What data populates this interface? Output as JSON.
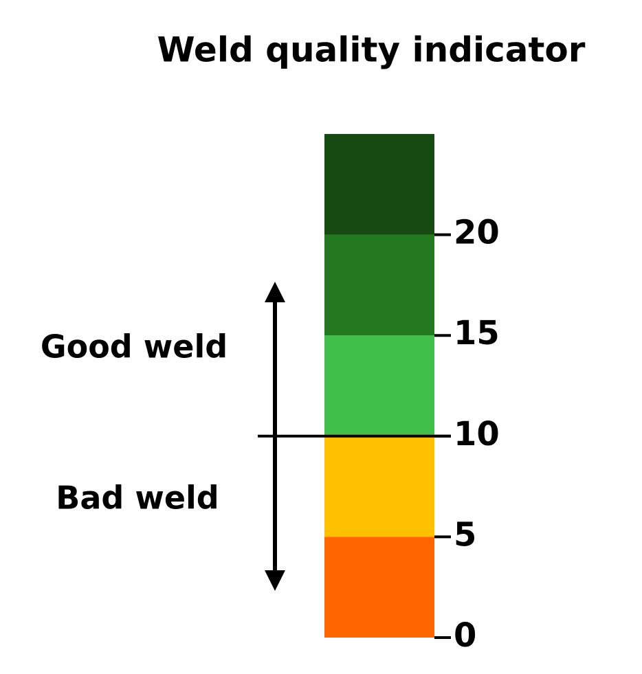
{
  "title": "Weld quality indicator",
  "scale": {
    "ylim": [
      0,
      25
    ],
    "yticks": [
      0,
      5,
      10,
      15,
      20
    ],
    "bands": [
      {
        "from": 0,
        "to": 5,
        "color": "#ff6600"
      },
      {
        "from": 5,
        "to": 10,
        "color": "#ffc000"
      },
      {
        "from": 10,
        "to": 15,
        "color": "#40bf4a"
      },
      {
        "from": 15,
        "to": 20,
        "color": "#237820"
      },
      {
        "from": 20,
        "to": 25,
        "color": "#174a13"
      }
    ],
    "threshold": 10
  },
  "labels": {
    "good": "Good weld",
    "bad": "Bad weld"
  }
}
